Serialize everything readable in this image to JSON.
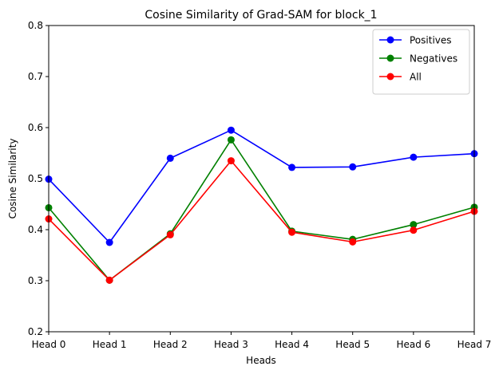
{
  "chart_data": {
    "type": "line",
    "title": "Cosine Similarity of Grad-SAM for block_1",
    "xlabel": "Heads",
    "ylabel": "Cosine Similarity",
    "categories": [
      "Head 0",
      "Head 1",
      "Head 2",
      "Head 3",
      "Head 4",
      "Head 5",
      "Head 6",
      "Head 7"
    ],
    "ylim": [
      0.2,
      0.8
    ],
    "yticks": [
      "0.2",
      "0.3",
      "0.4",
      "0.5",
      "0.6",
      "0.7",
      "0.8"
    ],
    "grid": false,
    "legend_position": "top-right",
    "series": [
      {
        "name": "Positives",
        "color": "#0000ff",
        "values": [
          0.499,
          0.375,
          0.54,
          0.595,
          0.522,
          0.523,
          0.542,
          0.549
        ]
      },
      {
        "name": "Negatives",
        "color": "#008000",
        "values": [
          0.443,
          0.301,
          0.392,
          0.576,
          0.397,
          0.381,
          0.41,
          0.444
        ]
      },
      {
        "name": "All",
        "color": "#ff0000",
        "values": [
          0.421,
          0.301,
          0.39,
          0.535,
          0.395,
          0.376,
          0.399,
          0.436
        ]
      }
    ]
  }
}
